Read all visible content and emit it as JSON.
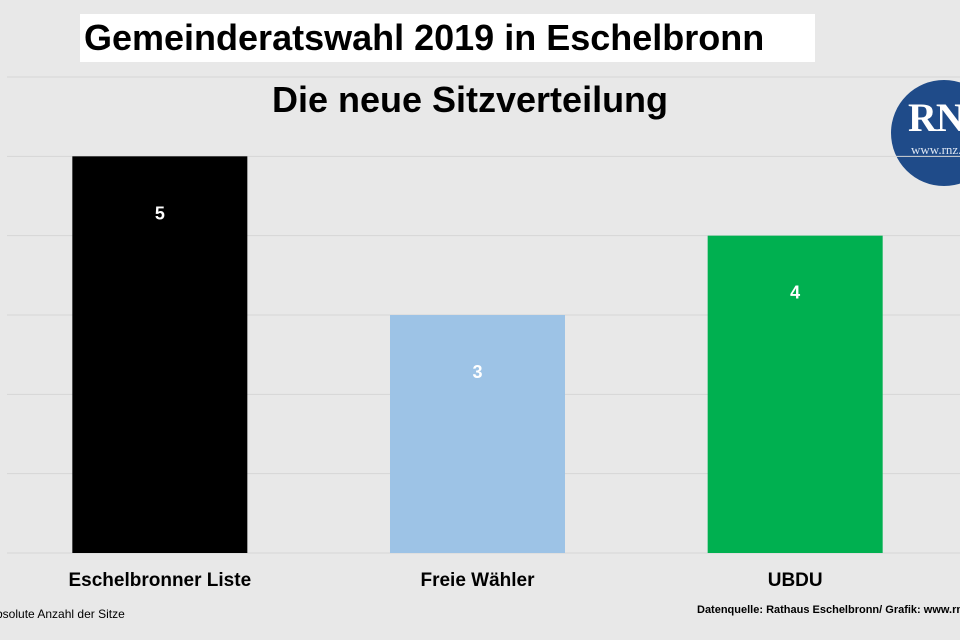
{
  "chart_data": {
    "type": "bar",
    "title": "Gemeinderatswahl 2019 in Eschelbronn",
    "subtitle": "Die neue Sitzverteilung",
    "categories": [
      "Eschelbronner Liste",
      "Freie Wähler",
      "UBDU"
    ],
    "values": [
      5,
      3,
      4
    ],
    "colors": [
      "#000000",
      "#9dc3e6",
      "#00b050"
    ],
    "ylim": [
      0,
      6
    ],
    "grid": true,
    "data_labels": true
  },
  "logo": {
    "text": "RNZ",
    "url": "www.rnz.de"
  },
  "footnotes": {
    "left": "Absolute Anzahl der Sitze",
    "right": "Datenquelle: Rathaus Eschelbronn/ Grafik: www.rnz.de"
  }
}
